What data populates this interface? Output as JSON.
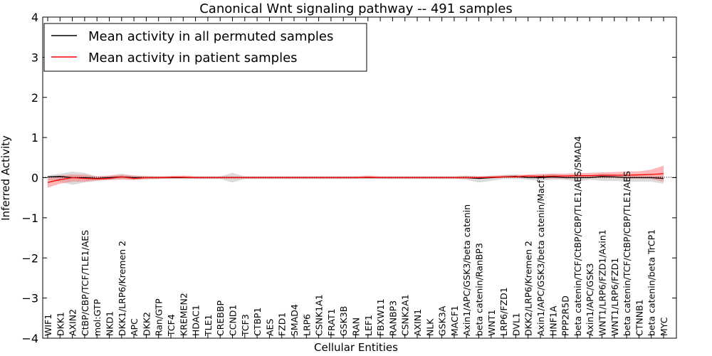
{
  "chart_data": {
    "type": "line",
    "title": "Canonical Wnt signaling pathway -- 491 samples",
    "xlabel": "Cellular Entities",
    "ylabel": "Inferred Activity",
    "ylim": [
      -4,
      4
    ],
    "yticks": [
      4,
      3,
      2,
      1,
      0,
      -1,
      -2,
      -3,
      -4
    ],
    "ytick_labels": [
      "4",
      "3",
      "2",
      "1",
      "0",
      "−1",
      "−2",
      "−3",
      "−4"
    ],
    "grid": false,
    "legend_position": "top-left",
    "categories": [
      "WIF1",
      "DKK1",
      "AXIN2",
      "CtBP/CBP/TCF/TLE1/AES",
      "mol:GTP",
      "NKD1",
      "DKK1/LRP6/Kremen 2",
      "APC",
      "DKK2",
      "Ran/GTP",
      "TCF4",
      "KREMEN2",
      "HDAC1",
      "TLE1",
      "CREBBP",
      "CCND1",
      "TCF3",
      "CTBP1",
      "AES",
      "FZD1",
      "SMAD4",
      "LRP6",
      "CSNK1A1",
      "FRAT1",
      "GSK3B",
      "RAN",
      "LEF1",
      "FBXW11",
      "RANBP3",
      "CSNK2A1",
      "AXIN1",
      "NLK",
      "GSK3A",
      "MACF1",
      "Axin1/APC/GSK3/beta catenin",
      "beta catenin/RanBP3",
      "WNT1",
      "LRP6/FZD1",
      "DVL1",
      "DKK2/LRP6/Kremen 2",
      "Axin1/APC/GSK3/beta catenin/Macf1",
      "HNF1A",
      "PPP2R5D",
      "beta catenin/TCF/CtBP/CBP/TLE1/AES/SMAD4",
      "Axin1/APC/GSK3",
      "WNT1/LRP6/FZD1/Axin1",
      "WNT1/LRP6/FZD1",
      "beta catenin/TCF/CtBP/CBP/TLE1/AES",
      "CTNNB1",
      "beta catenin/beta TrCP1",
      "MYC"
    ],
    "series": [
      {
        "name": "Mean activity in all permuted samples",
        "color": "#000000",
        "band_color": "#b0b0b0",
        "values": [
          0.02,
          0.03,
          0.0,
          0.0,
          -0.02,
          0.0,
          0.02,
          0.0,
          0.0,
          0.0,
          0.0,
          0.0,
          0.0,
          0.0,
          0.0,
          0.0,
          0.0,
          0.0,
          0.0,
          0.0,
          0.0,
          0.0,
          0.0,
          0.0,
          0.0,
          0.0,
          0.0,
          0.0,
          0.0,
          0.0,
          0.0,
          0.0,
          0.0,
          0.0,
          0.0,
          -0.02,
          0.0,
          0.02,
          0.03,
          0.0,
          0.0,
          0.02,
          0.0,
          0.0,
          0.0,
          0.03,
          0.02,
          0.0,
          0.0,
          0.0,
          -0.02
        ],
        "upper": [
          0.05,
          0.1,
          0.15,
          0.12,
          0.03,
          0.05,
          0.1,
          0.05,
          0.03,
          0.03,
          0.03,
          0.03,
          0.03,
          0.03,
          0.03,
          0.12,
          0.03,
          0.03,
          0.03,
          0.03,
          0.03,
          0.03,
          0.03,
          0.03,
          0.03,
          0.03,
          0.03,
          0.03,
          0.03,
          0.03,
          0.03,
          0.03,
          0.03,
          0.03,
          0.05,
          0.03,
          0.05,
          0.07,
          0.08,
          0.05,
          0.07,
          0.1,
          0.05,
          0.05,
          0.05,
          0.1,
          0.08,
          0.05,
          0.05,
          0.05,
          0.05
        ],
        "lower": [
          -0.05,
          -0.1,
          -0.18,
          -0.12,
          -0.08,
          -0.05,
          -0.05,
          -0.05,
          -0.03,
          -0.03,
          -0.03,
          -0.03,
          -0.03,
          -0.03,
          -0.03,
          -0.12,
          -0.03,
          -0.03,
          -0.03,
          -0.03,
          -0.03,
          -0.03,
          -0.03,
          -0.03,
          -0.03,
          -0.03,
          -0.03,
          -0.03,
          -0.03,
          -0.03,
          -0.03,
          -0.03,
          -0.03,
          -0.03,
          -0.05,
          -0.12,
          -0.08,
          -0.03,
          -0.03,
          -0.05,
          -0.08,
          -0.05,
          -0.05,
          -0.1,
          -0.05,
          -0.08,
          -0.08,
          -0.1,
          -0.1,
          -0.1,
          -0.15
        ]
      },
      {
        "name": "Mean activity in patient samples",
        "color": "#ff0000",
        "band_color": "#ff7070",
        "values": [
          -0.12,
          -0.05,
          0.0,
          -0.02,
          -0.03,
          -0.02,
          0.02,
          -0.02,
          0.0,
          0.0,
          0.01,
          0.01,
          0.0,
          0.0,
          0.0,
          0.0,
          0.0,
          0.0,
          0.0,
          0.0,
          0.0,
          0.0,
          0.0,
          0.0,
          0.0,
          0.0,
          0.01,
          0.0,
          0.0,
          0.0,
          0.0,
          0.0,
          0.0,
          0.0,
          0.0,
          0.0,
          0.01,
          0.02,
          0.02,
          0.04,
          0.03,
          0.04,
          0.04,
          0.05,
          0.05,
          0.06,
          0.06,
          0.06,
          0.07,
          0.08,
          0.1
        ],
        "upper": [
          0.03,
          0.05,
          0.08,
          0.07,
          0.03,
          0.05,
          0.07,
          0.05,
          0.04,
          0.03,
          0.04,
          0.05,
          0.03,
          0.03,
          0.03,
          0.03,
          0.03,
          0.03,
          0.03,
          0.03,
          0.03,
          0.03,
          0.03,
          0.03,
          0.03,
          0.03,
          0.05,
          0.03,
          0.03,
          0.03,
          0.03,
          0.03,
          0.03,
          0.03,
          0.04,
          0.03,
          0.04,
          0.05,
          0.06,
          0.08,
          0.09,
          0.1,
          0.1,
          0.11,
          0.12,
          0.13,
          0.14,
          0.15,
          0.16,
          0.2,
          0.3
        ],
        "lower": [
          -0.25,
          -0.15,
          -0.1,
          -0.1,
          -0.07,
          -0.06,
          -0.04,
          -0.06,
          -0.04,
          -0.03,
          -0.02,
          -0.02,
          -0.02,
          -0.02,
          -0.02,
          -0.02,
          -0.02,
          -0.02,
          -0.02,
          -0.02,
          -0.02,
          -0.02,
          -0.02,
          -0.02,
          -0.02,
          -0.02,
          -0.02,
          -0.02,
          -0.02,
          -0.02,
          -0.02,
          -0.02,
          -0.02,
          -0.02,
          -0.03,
          -0.02,
          -0.02,
          -0.01,
          -0.01,
          0.0,
          -0.02,
          -0.02,
          -0.02,
          -0.01,
          -0.01,
          -0.01,
          -0.01,
          -0.02,
          -0.02,
          -0.03,
          -0.1
        ]
      }
    ]
  }
}
